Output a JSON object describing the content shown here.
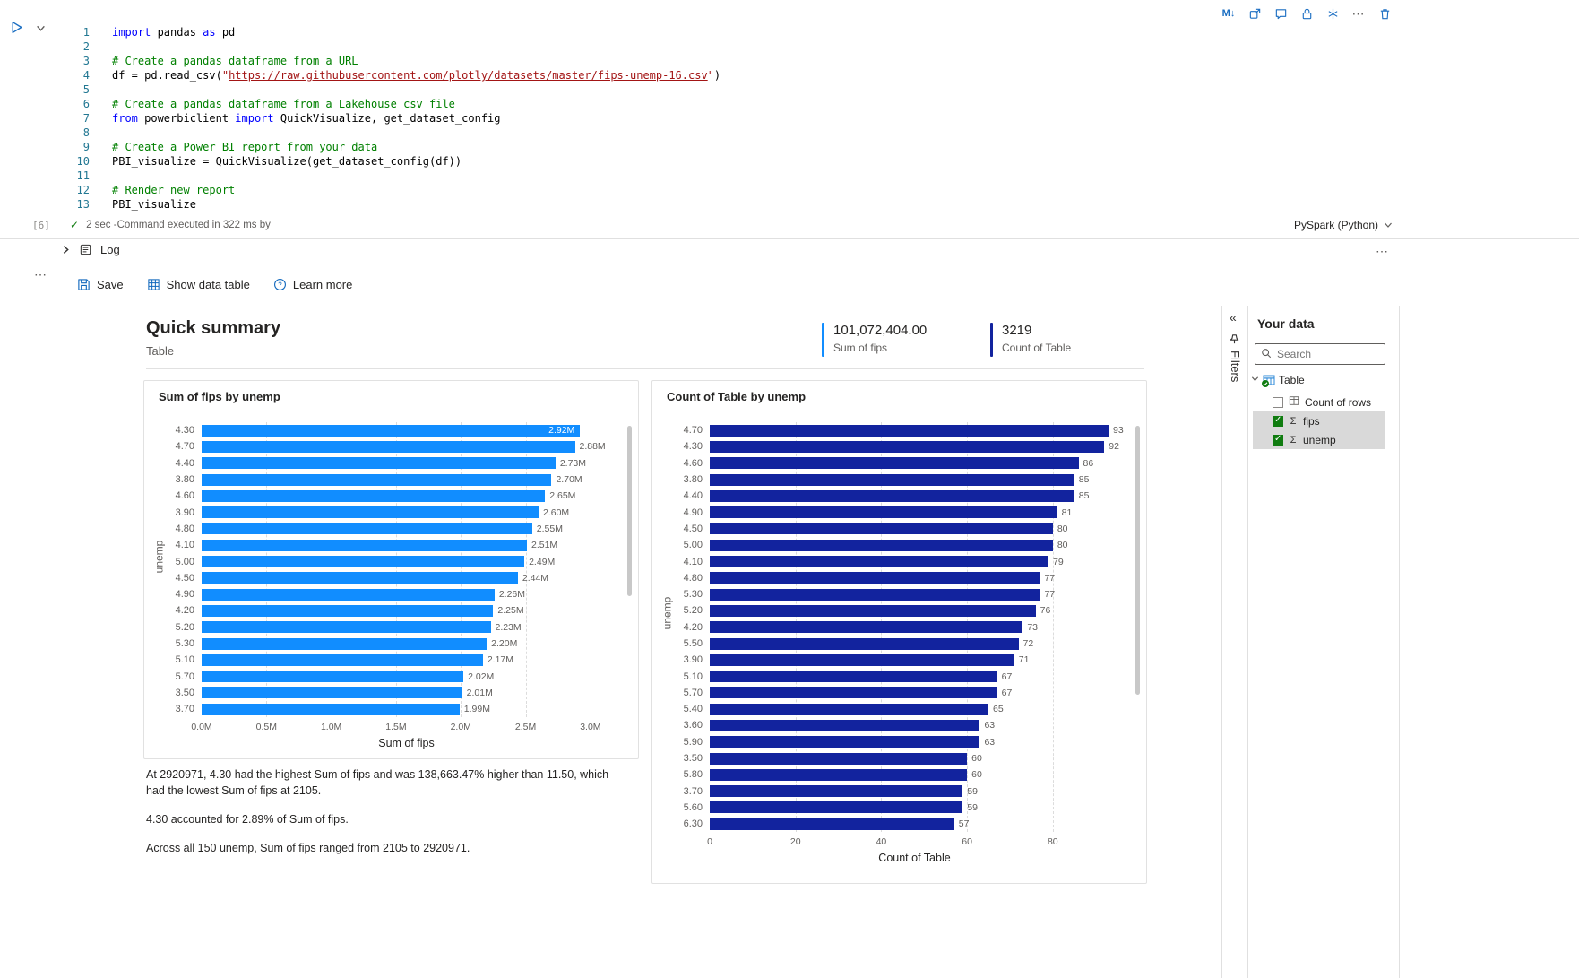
{
  "notebook": {
    "toolbar": {
      "markdown_glyph": "M↓",
      "icons": [
        "markdown-icon",
        "expand-cell-icon",
        "comment-icon",
        "lock-icon",
        "freeze-icon",
        "more-options-icon",
        "delete-cell-icon"
      ]
    },
    "code": {
      "lines": [
        [
          [
            "import",
            "kw"
          ],
          [
            " pandas ",
            "pl"
          ],
          [
            "as",
            "kw"
          ],
          [
            " pd",
            "pl"
          ]
        ],
        [],
        [
          [
            "# Create a pandas dataframe from a URL",
            "cm"
          ]
        ],
        [
          [
            "df = pd.read_csv(",
            "pl"
          ],
          [
            "\"",
            "st"
          ],
          [
            "https://raw.githubusercontent.com/plotly/datasets/master/fips-unemp-16.csv",
            "lk"
          ],
          [
            "\"",
            "st"
          ],
          [
            ")",
            "pl"
          ]
        ],
        [],
        [
          [
            "# Create a pandas dataframe from a Lakehouse csv file",
            "cm"
          ]
        ],
        [
          [
            "from",
            "kw"
          ],
          [
            " powerbiclient ",
            "pl"
          ],
          [
            "import",
            "kw"
          ],
          [
            " QuickVisualize, get_dataset_config",
            "pl"
          ]
        ],
        [],
        [
          [
            "# Create a Power BI report from your data",
            "cm"
          ]
        ],
        [
          [
            "PBI_visualize = QuickVisualize(get_dataset_config(df))",
            "pl"
          ]
        ],
        [],
        [
          [
            "# Render new report",
            "cm"
          ]
        ],
        [
          [
            "PBI_visualize",
            "pl"
          ]
        ]
      ]
    },
    "status": {
      "exec_count": "[6]",
      "time_text": "2 sec -Command executed in 322 ms by"
    },
    "kernel": {
      "label": "PySpark (Python)"
    },
    "log_label": "Log"
  },
  "pbi": {
    "toolbar": {
      "save": "Save",
      "show_data_table": "Show data table",
      "learn_more": "Learn more"
    },
    "header": {
      "title": "Quick summary",
      "subtitle": "Table",
      "kpis": [
        {
          "value": "101,072,404.00",
          "label": "Sum of fips",
          "color": "#118DFF"
        },
        {
          "value": "3219",
          "label": "Count of Table",
          "color": "#12239E"
        }
      ]
    },
    "narrative": [
      "At 2920971, 4.30 had the highest Sum of fips and was 138,663.47% higher than 11.50, which had the lowest Sum of fips at 2105.",
      "4.30 accounted for 2.89% of Sum of fips.",
      "Across all 150 unemp, Sum of fips ranged from 2105 to 2920971."
    ],
    "filters_label": "Filters",
    "your_data": {
      "title": "Your data",
      "search_placeholder": "Search",
      "tree": {
        "root": "Table",
        "children": [
          {
            "label": "Count of rows",
            "checked": false,
            "icon": "table-icon",
            "selected": false
          },
          {
            "label": "fips",
            "checked": true,
            "icon": "sigma-icon",
            "selected": true
          },
          {
            "label": "unemp",
            "checked": true,
            "icon": "sigma-icon",
            "selected": true
          }
        ]
      }
    }
  },
  "chart_data": [
    {
      "type": "bar",
      "orientation": "horizontal",
      "title": "Sum of fips by unemp",
      "categories": [
        "4.30",
        "4.70",
        "4.40",
        "3.80",
        "4.60",
        "3.90",
        "4.80",
        "4.10",
        "5.00",
        "4.50",
        "4.90",
        "4.20",
        "5.20",
        "5.30",
        "5.10",
        "5.70",
        "3.50",
        "3.70"
      ],
      "values": [
        2.92,
        2.88,
        2.73,
        2.7,
        2.65,
        2.6,
        2.55,
        2.51,
        2.49,
        2.44,
        2.26,
        2.25,
        2.23,
        2.2,
        2.17,
        2.02,
        2.01,
        1.99
      ],
      "value_labels": [
        "2.92M",
        "2.88M",
        "2.73M",
        "2.70M",
        "2.65M",
        "2.60M",
        "2.55M",
        "2.51M",
        "2.49M",
        "2.44M",
        "2.26M",
        "2.25M",
        "2.23M",
        "2.20M",
        "2.17M",
        "2.02M",
        "2.01M",
        "1.99M"
      ],
      "xlabel": "Sum of fips",
      "ylabel": "unemp",
      "ticks": [
        {
          "v": 0,
          "label": "0.0M"
        },
        {
          "v": 0.5,
          "label": "0.5M"
        },
        {
          "v": 1,
          "label": "1.0M"
        },
        {
          "v": 1.5,
          "label": "1.5M"
        },
        {
          "v": 2,
          "label": "2.0M"
        },
        {
          "v": 2.5,
          "label": "2.5M"
        },
        {
          "v": 3,
          "label": "3.0M"
        }
      ],
      "xmax": 3.16,
      "color": "#118DFF",
      "first_label_inside": true,
      "legend": "off",
      "grid": "dashed-vertical"
    },
    {
      "type": "bar",
      "orientation": "horizontal",
      "title": "Count of Table by unemp",
      "categories": [
        "4.70",
        "4.30",
        "4.60",
        "3.80",
        "4.40",
        "4.90",
        "4.50",
        "5.00",
        "4.10",
        "4.80",
        "5.30",
        "5.20",
        "4.20",
        "5.50",
        "3.90",
        "5.10",
        "5.70",
        "5.40",
        "3.60",
        "5.90",
        "3.50",
        "5.80",
        "3.70",
        "5.60",
        "6.30"
      ],
      "values": [
        93,
        92,
        86,
        85,
        85,
        81,
        80,
        80,
        79,
        77,
        77,
        76,
        73,
        72,
        71,
        67,
        67,
        65,
        63,
        63,
        60,
        60,
        59,
        59,
        57
      ],
      "value_labels": [
        "93",
        "92",
        "86",
        "85",
        "85",
        "81",
        "80",
        "80",
        "79",
        "77",
        "77",
        "76",
        "73",
        "72",
        "71",
        "67",
        "67",
        "65",
        "63",
        "63",
        "60",
        "60",
        "59",
        "59",
        "57"
      ],
      "xlabel": "Count of Table",
      "ylabel": "unemp",
      "ticks": [
        {
          "v": 0,
          "label": "0"
        },
        {
          "v": 20,
          "label": "20"
        },
        {
          "v": 40,
          "label": "40"
        },
        {
          "v": 60,
          "label": "60"
        },
        {
          "v": 80,
          "label": "80"
        }
      ],
      "xmax": 95.5,
      "color": "#12239E",
      "first_label_inside": false,
      "legend": "off",
      "grid": "dashed-vertical"
    }
  ]
}
